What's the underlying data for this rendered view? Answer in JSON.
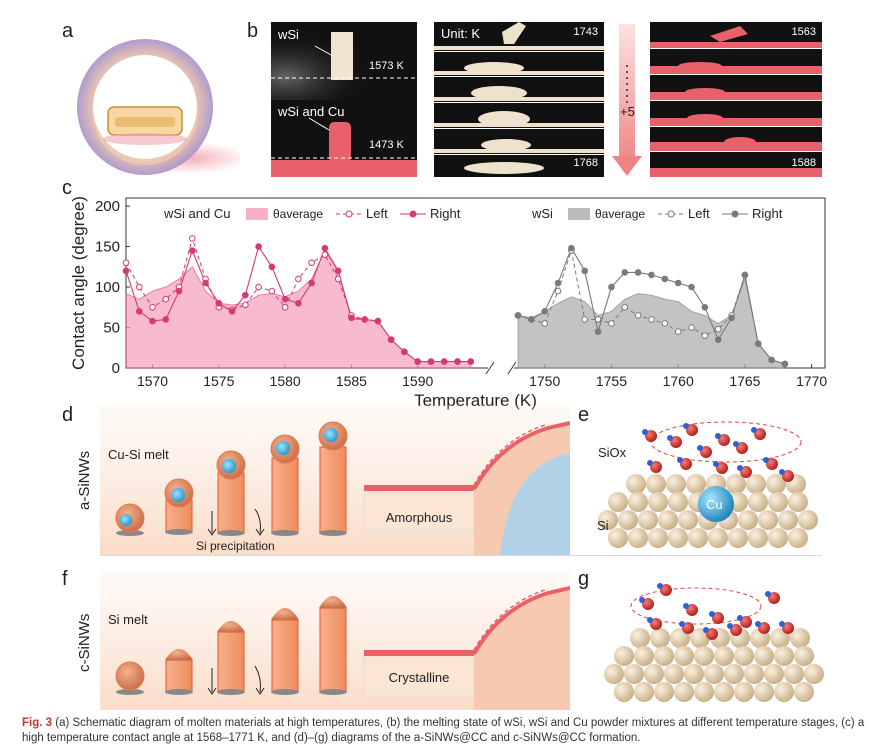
{
  "panels": {
    "a": "a",
    "b": "b",
    "c": "c",
    "d": "d",
    "e": "e",
    "f": "f",
    "g": "g"
  },
  "panel_b": {
    "wsi_label": "wSi",
    "wsi_temp": "1573 K",
    "wsicu_label": "wSi and Cu",
    "wsicu_temp": "1473 K",
    "unit_label": "Unit: K",
    "col1_top": "1743",
    "col1_bottom": "1768",
    "arrow_label": "+5",
    "col2_top": "1563",
    "col2_bottom": "1588"
  },
  "chart_data": {
    "type": "area",
    "ylabel": "Contact angle (degree)",
    "xlabel": "Temperature (K)",
    "ylim": [
      0,
      210
    ],
    "yticks": [
      "0",
      "50",
      "100",
      "150",
      "200"
    ],
    "left_panel": {
      "xlim": [
        1568,
        1595
      ],
      "xticks": [
        "1570",
        "1575",
        "1580",
        "1585",
        "1590"
      ],
      "legend_title": "wSi and Cu",
      "legend_avg": "θaverage",
      "legend_left": "Left",
      "legend_right": "Right",
      "x": [
        1568,
        1569,
        1570,
        1571,
        1572,
        1573,
        1574,
        1575,
        1576,
        1577,
        1578,
        1579,
        1580,
        1581,
        1582,
        1583,
        1584,
        1585,
        1586,
        1587,
        1588,
        1589,
        1590,
        1591,
        1592,
        1593,
        1594
      ],
      "average": [
        92,
        85,
        95,
        100,
        110,
        125,
        95,
        80,
        78,
        80,
        90,
        92,
        88,
        95,
        110,
        145,
        120,
        60,
        60,
        58,
        35,
        20,
        8,
        8,
        8,
        8,
        8
      ],
      "left": [
        130,
        100,
        75,
        85,
        100,
        160,
        110,
        75,
        72,
        78,
        100,
        95,
        75,
        110,
        130,
        140,
        110,
        65,
        60,
        58,
        35,
        20,
        8,
        8,
        8,
        8,
        8
      ],
      "right": [
        120,
        70,
        58,
        60,
        95,
        145,
        105,
        80,
        70,
        90,
        150,
        125,
        85,
        80,
        105,
        148,
        120,
        62,
        60,
        58,
        35,
        20,
        8,
        8,
        8,
        8,
        8
      ]
    },
    "right_panel": {
      "xlim": [
        1748,
        1771
      ],
      "xticks": [
        "1750",
        "1755",
        "1760",
        "1765",
        "1770"
      ],
      "legend_title": "wSi",
      "legend_avg": "θaverage",
      "legend_left": "Left",
      "legend_right": "Right",
      "x": [
        1748,
        1749,
        1750,
        1751,
        1752,
        1753,
        1754,
        1755,
        1756,
        1757,
        1758,
        1759,
        1760,
        1761,
        1762,
        1763,
        1764,
        1765,
        1766,
        1767,
        1768
      ],
      "average": [
        65,
        62,
        70,
        80,
        88,
        82,
        65,
        70,
        85,
        92,
        90,
        85,
        82,
        70,
        65,
        55,
        65,
        110,
        30,
        10,
        5
      ],
      "left": [
        65,
        60,
        55,
        95,
        145,
        60,
        60,
        55,
        75,
        65,
        60,
        55,
        45,
        50,
        40,
        48,
        65,
        115,
        30,
        10,
        5
      ],
      "right": [
        65,
        60,
        70,
        105,
        148,
        120,
        45,
        100,
        118,
        118,
        115,
        110,
        105,
        100,
        75,
        35,
        62,
        115,
        30,
        10,
        5
      ]
    }
  },
  "panel_d": {
    "side_label": "a-SiNWs",
    "melt_label": "Cu-Si melt",
    "precip_label": "Si precipitation",
    "box_label": "Amorphous"
  },
  "panel_e": {
    "siox_label": "SiOx",
    "cu_label": "Cu",
    "si_label": "Si"
  },
  "panel_f": {
    "side_label": "c-SiNWs",
    "melt_label": "Si melt",
    "box_label": "Crystalline"
  },
  "caption": {
    "fig": "Fig. 3",
    "text": "(a) Schematic diagram of molten materials at high temperatures, (b) the melting state of wSi, wSi and Cu powder mixtures at different temperature stages, (c) a high temperature contact angle at 1568–1771 K, and (d)–(g) diagrams of the a-SiNWs@CC and c-SiNWs@CC formation."
  },
  "colors": {
    "pink": "#e8577a",
    "pink_fill": "#f7b7c9",
    "gray": "#8a8a8a",
    "gray_fill": "#bdbdbd",
    "cu_blue": "#3aa7d8",
    "si_bead": "#e9d8bc",
    "oxygen": "#d83030",
    "nw_orange": "#f4a07a"
  }
}
